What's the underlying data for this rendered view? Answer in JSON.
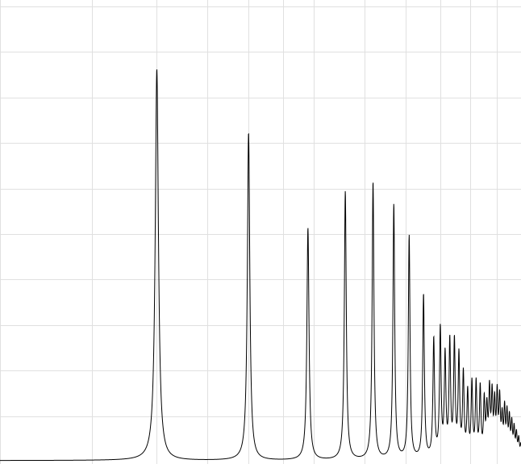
{
  "chart_data": {
    "type": "line",
    "title": "",
    "xlabel": "",
    "ylabel": "",
    "x_scale": "log",
    "grid": true,
    "axes_visible": false,
    "tick_labels_visible": false,
    "xlim": [
      1,
      10
    ],
    "ylim": [
      0,
      10
    ],
    "series": [
      {
        "line_color": "#000000",
        "baseline": 0.02,
        "resonance_peaks": [
          {
            "x": 2.0,
            "y": 8.6
          },
          {
            "x": 3.0,
            "y": 7.2
          },
          {
            "x": 3.9,
            "y": 5.1
          },
          {
            "x": 4.6,
            "y": 5.9
          },
          {
            "x": 5.2,
            "y": 6.1
          },
          {
            "x": 5.7,
            "y": 5.6
          },
          {
            "x": 6.1,
            "y": 4.9
          },
          {
            "x": 6.5,
            "y": 3.6
          },
          {
            "x": 6.8,
            "y": 2.6
          },
          {
            "x": 7.0,
            "y": 2.8
          },
          {
            "x": 7.15,
            "y": 2.2
          },
          {
            "x": 7.3,
            "y": 2.5
          },
          {
            "x": 7.45,
            "y": 2.5
          },
          {
            "x": 7.6,
            "y": 2.2
          },
          {
            "x": 7.75,
            "y": 1.8
          },
          {
            "x": 7.9,
            "y": 1.4
          },
          {
            "x": 8.05,
            "y": 1.6
          },
          {
            "x": 8.2,
            "y": 1.6
          },
          {
            "x": 8.35,
            "y": 1.5
          },
          {
            "x": 8.5,
            "y": 1.2
          },
          {
            "x": 8.6,
            "y": 1.0
          },
          {
            "x": 8.7,
            "y": 1.4
          },
          {
            "x": 8.8,
            "y": 1.3
          },
          {
            "x": 8.9,
            "y": 1.1
          },
          {
            "x": 9.0,
            "y": 1.3
          },
          {
            "x": 9.1,
            "y": 1.2
          },
          {
            "x": 9.2,
            "y": 0.8
          },
          {
            "x": 9.3,
            "y": 1.0
          },
          {
            "x": 9.4,
            "y": 0.9
          },
          {
            "x": 9.5,
            "y": 0.8
          },
          {
            "x": 9.6,
            "y": 0.7
          },
          {
            "x": 9.7,
            "y": 0.6
          },
          {
            "x": 9.8,
            "y": 0.5
          },
          {
            "x": 9.9,
            "y": 0.4
          },
          {
            "x": 10.0,
            "y": 0.3
          }
        ]
      }
    ]
  },
  "colors": {
    "background": "#ffffff",
    "grid": "#e0e0e0",
    "line": "#000000"
  }
}
